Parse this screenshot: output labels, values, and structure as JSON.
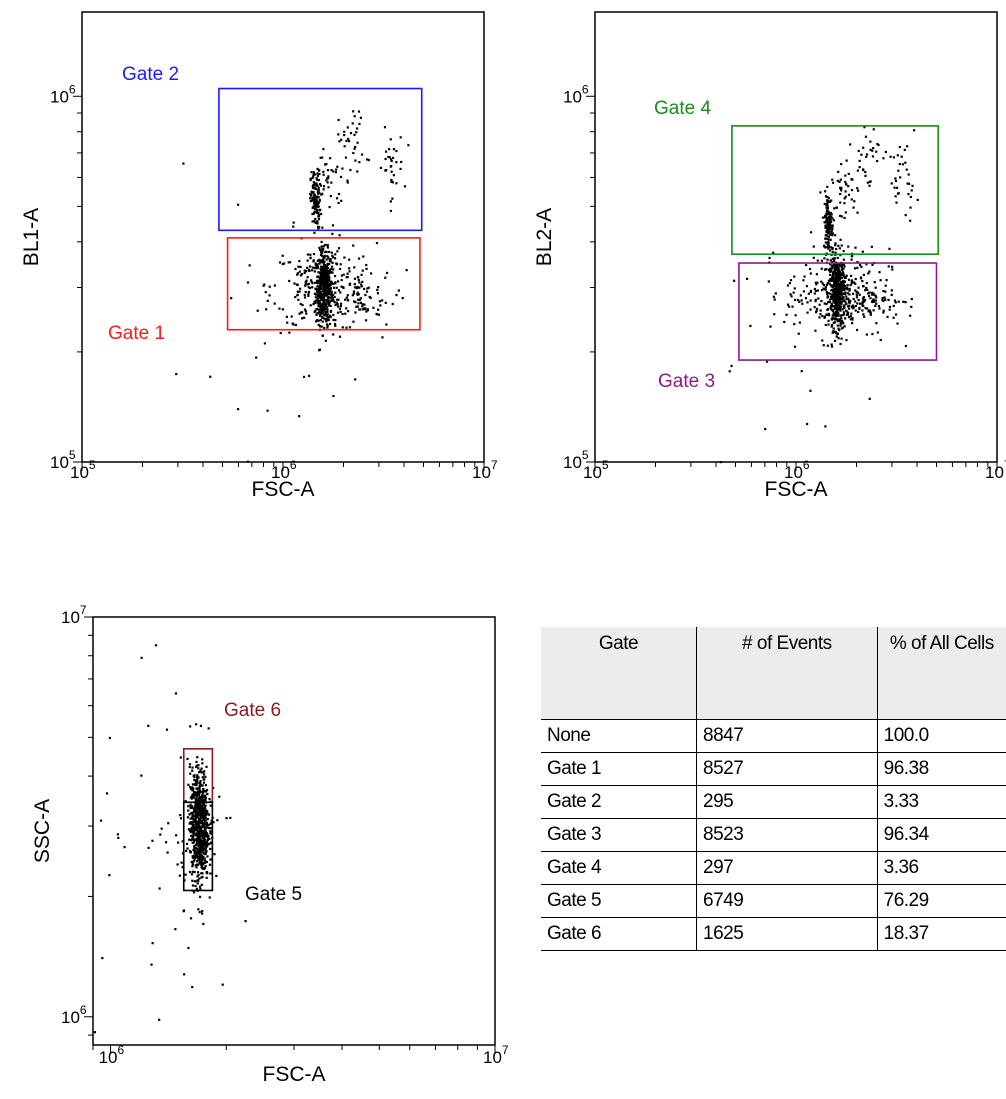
{
  "chart_data": [
    {
      "type": "scatter",
      "xlabel": "FSC-A",
      "ylabel": "BL1-A",
      "xscale": "log",
      "yscale": "log",
      "xlim": [
        100000,
        10000000
      ],
      "ylim": [
        100000,
        1700000
      ],
      "x_ticks": [
        "10^5",
        "10^6",
        "10^7"
      ],
      "y_ticks": [
        "10^5",
        "10^6"
      ],
      "gates": [
        {
          "name": "Gate 2",
          "color": "#1a1aff",
          "x": [
            480000,
            4900000
          ],
          "y": [
            430000,
            1050000
          ]
        },
        {
          "name": "Gate 1",
          "color": "#ff1a1a",
          "x": [
            530000,
            4800000
          ],
          "y": [
            230000,
            410000
          ]
        }
      ],
      "cluster_center": [
        1600000,
        300000
      ],
      "neck_center": [
        1450000,
        520000
      ],
      "upper_branch": [
        [
          1700000,
          600000
        ],
        [
          2200000,
          750000
        ],
        [
          3400000,
          640000
        ]
      ]
    },
    {
      "type": "scatter",
      "xlabel": "FSC-A",
      "ylabel": "BL2-A",
      "xscale": "log",
      "yscale": "log",
      "xlim": [
        100000,
        10000000
      ],
      "ylim": [
        100000,
        1700000
      ],
      "x_ticks": [
        "10^5",
        "10^6",
        "10^7"
      ],
      "y_ticks": [
        "10^5",
        "10^6"
      ],
      "gates": [
        {
          "name": "Gate 4",
          "color": "#1a8c1a",
          "x": [
            480000,
            5100000
          ],
          "y": [
            370000,
            830000
          ]
        },
        {
          "name": "Gate 3",
          "color": "#8c1a8c",
          "x": [
            520000,
            5000000
          ],
          "y": [
            190000,
            350000
          ]
        }
      ],
      "cluster_center": [
        1600000,
        290000
      ],
      "neck_center": [
        1450000,
        450000
      ],
      "upper_branch": [
        [
          1700000,
          560000
        ],
        [
          2200000,
          680000
        ],
        [
          3400000,
          590000
        ]
      ]
    },
    {
      "type": "scatter",
      "xlabel": "FSC-A",
      "ylabel": "SSC-A",
      "xscale": "log",
      "yscale": "log",
      "xlim": [
        900000,
        10000000
      ],
      "ylim": [
        850000,
        10000000
      ],
      "x_ticks": [
        "10^6",
        "10^7"
      ],
      "y_ticks": [
        "10^6",
        "10^7"
      ],
      "gates": [
        {
          "name": "Gate 6",
          "color": "#8b1a1a",
          "x": [
            1550000,
            1840000
          ],
          "y": [
            3440000,
            4680000
          ]
        },
        {
          "name": "Gate 5",
          "color": "#000000",
          "x": [
            1550000,
            1840000
          ],
          "y": [
            2070000,
            3440000
          ]
        }
      ],
      "column_center": [
        1700000,
        3000000
      ]
    },
    {
      "type": "table",
      "columns": [
        "Gate",
        "# of Events",
        "% of All Cells"
      ],
      "rows": [
        [
          "None",
          "8847",
          "100.0"
        ],
        [
          "Gate 1",
          "8527",
          "96.38"
        ],
        [
          "Gate 2",
          "295",
          "3.33"
        ],
        [
          "Gate 3",
          "8523",
          "96.34"
        ],
        [
          "Gate 4",
          "297",
          "3.36"
        ],
        [
          "Gate 5",
          "6749",
          "76.29"
        ],
        [
          "Gate 6",
          "1625",
          "18.37"
        ]
      ]
    }
  ]
}
